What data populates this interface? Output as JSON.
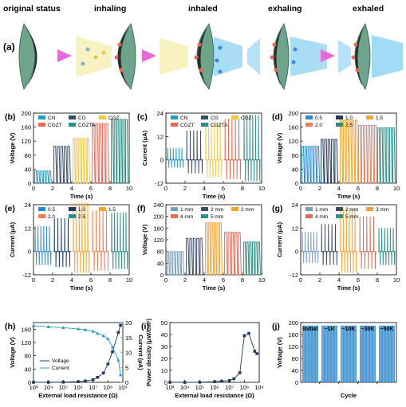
{
  "panel_a": {
    "letter": "(a)",
    "stages": [
      "original status",
      "inhaling",
      "inhaled",
      "exhaling",
      "exhaled"
    ]
  },
  "colors": {
    "green": "#6fa48c",
    "arrow": "#e86ad8",
    "flow": "#6ec6ef",
    "cyan_teal": "#2a9bbf",
    "dark": "#3d4a66",
    "yellow": "#f3c84b",
    "red": "#e46a55",
    "teal": "#2f8f86",
    "blue": "#2f88c9",
    "navy": "#1f3a5f",
    "orange": "#f2a431",
    "salmon": "#ef7d57",
    "grey_blue": "#7a9dc2"
  },
  "chart_data": [
    {
      "id": "b",
      "letter": "(b)",
      "type": "line",
      "mode": "voltage",
      "xlabel": "Time (s)",
      "ylabel": "Voltage (V)",
      "xlim": [
        0,
        10
      ],
      "ylim": [
        0,
        200
      ],
      "xticks": [
        0,
        2,
        4,
        6,
        8,
        10
      ],
      "yticks": [
        0,
        40,
        80,
        120,
        160,
        200
      ],
      "series": [
        {
          "name": "CN",
          "color": "#2a9bbf",
          "start": 0.1,
          "end": 1.9,
          "peak": 35,
          "n": 6
        },
        {
          "name": "CG",
          "color": "#3d4a66",
          "start": 2.1,
          "end": 3.9,
          "peak": 105,
          "n": 5
        },
        {
          "name": "CGZ",
          "color": "#f3c84b",
          "start": 4.1,
          "end": 5.9,
          "peak": 128,
          "n": 6
        },
        {
          "name": "CGZT",
          "color": "#e46a55",
          "start": 6.1,
          "end": 7.9,
          "peak": 170,
          "n": 5
        },
        {
          "name": "CGZTA",
          "color": "#2f8f86",
          "start": 8.1,
          "end": 9.9,
          "peak": 182,
          "n": 6
        }
      ],
      "legend": [
        [
          "CN",
          "CG",
          "CGZ"
        ],
        [
          "CGZT",
          "CGZTA"
        ]
      ]
    },
    {
      "id": "c",
      "letter": "(c)",
      "type": "line",
      "mode": "current",
      "xlabel": "Time (s)",
      "ylabel": "Current (μA)",
      "xlim": [
        0,
        10
      ],
      "ylim": [
        -12,
        24
      ],
      "xticks": [
        0,
        2,
        4,
        6,
        8,
        10
      ],
      "yticks": [
        -12,
        0,
        12,
        24
      ],
      "series": [
        {
          "name": "CN",
          "color": "#2a9bbf",
          "start": 0.1,
          "end": 1.9,
          "peak": 6,
          "neg": -4,
          "n": 6
        },
        {
          "name": "CG",
          "color": "#3d4a66",
          "start": 2.1,
          "end": 3.9,
          "peak": 15,
          "neg": -7,
          "n": 5
        },
        {
          "name": "CGZ",
          "color": "#f3c84b",
          "start": 4.1,
          "end": 5.9,
          "peak": 19,
          "neg": -9,
          "n": 6
        },
        {
          "name": "CGZT",
          "color": "#e46a55",
          "start": 6.1,
          "end": 7.9,
          "peak": 21,
          "neg": -10,
          "n": 5
        },
        {
          "name": "CGZTA",
          "color": "#2f8f86",
          "start": 8.1,
          "end": 9.9,
          "peak": 23,
          "neg": -11,
          "n": 6
        }
      ],
      "legend": [
        [
          "CN",
          "CG",
          "CGZ"
        ],
        [
          "CGZT",
          "CGZTA"
        ]
      ]
    },
    {
      "id": "d",
      "letter": "(d)",
      "type": "line",
      "mode": "voltage",
      "xlabel": "Time (s)",
      "ylabel": "Voltage (V)",
      "xlim": [
        0,
        10
      ],
      "ylim": [
        0,
        200
      ],
      "xticks": [
        0,
        2,
        4,
        6,
        8,
        10
      ],
      "yticks": [
        0,
        40,
        80,
        120,
        160,
        200
      ],
      "series": [
        {
          "name": "0.5",
          "color": "#2f88c9",
          "start": 0.1,
          "end": 2.0,
          "peak": 105,
          "n": 6
        },
        {
          "name": "1.0",
          "color": "#1f3a5f",
          "start": 2.1,
          "end": 3.9,
          "peak": 125,
          "n": 5
        },
        {
          "name": "1.5",
          "color": "#f2a431",
          "start": 4.1,
          "end": 6.0,
          "peak": 180,
          "n": 6
        },
        {
          "name": "2.0",
          "color": "#ef7d57",
          "start": 6.0,
          "end": 8.0,
          "peak": 165,
          "n": 6
        },
        {
          "name": "2.5",
          "color": "#2f8f86",
          "start": 8.0,
          "end": 9.9,
          "peak": 158,
          "n": 6
        }
      ],
      "legend": [
        [
          "0.5",
          "1.0",
          "1.5"
        ],
        [
          "2.0",
          "2.5"
        ]
      ]
    },
    {
      "id": "e",
      "letter": "(e)",
      "type": "line",
      "mode": "current",
      "xlabel": "Time (s)",
      "ylabel": "Current (μA)",
      "xlim": [
        0,
        10
      ],
      "ylim": [
        -12,
        24
      ],
      "xticks": [
        0,
        2,
        4,
        6,
        8,
        10
      ],
      "yticks": [
        -12,
        0,
        12,
        24
      ],
      "series": [
        {
          "name": "0.5",
          "color": "#2f88c9",
          "start": 0.1,
          "end": 1.9,
          "peak": 13,
          "neg": -7,
          "n": 6
        },
        {
          "name": "1.0",
          "color": "#1f3a5f",
          "start": 2.1,
          "end": 3.9,
          "peak": 17,
          "neg": -8,
          "n": 5
        },
        {
          "name": "1.5",
          "color": "#f2a431",
          "start": 4.1,
          "end": 5.9,
          "peak": 25,
          "neg": -11,
          "n": 6
        },
        {
          "name": "2.0",
          "color": "#ef7d57",
          "start": 6.1,
          "end": 7.9,
          "peak": 21,
          "neg": -10,
          "n": 5
        },
        {
          "name": "2.5",
          "color": "#2f8f86",
          "start": 8.1,
          "end": 9.9,
          "peak": 20,
          "neg": -9,
          "n": 6
        }
      ],
      "legend": [
        [
          "0.5",
          "1.0",
          "1.5"
        ],
        [
          "2.0",
          "2.5"
        ]
      ]
    },
    {
      "id": "f",
      "letter": "(f)",
      "type": "line",
      "mode": "voltage",
      "xlabel": "Time (s)",
      "ylabel": "Voltage (V)",
      "xlim": [
        0,
        10
      ],
      "ylim": [
        0,
        240
      ],
      "xticks": [
        0,
        2,
        4,
        6,
        8,
        10
      ],
      "yticks": [
        0,
        40,
        80,
        120,
        160,
        200,
        240
      ],
      "series": [
        {
          "name": "1 mm",
          "color": "#7a9dc2",
          "start": 0.1,
          "end": 1.9,
          "peak": 80,
          "n": 6
        },
        {
          "name": "2 mm",
          "color": "#3d4a66",
          "start": 2.1,
          "end": 3.9,
          "peak": 125,
          "n": 5
        },
        {
          "name": "3 mm",
          "color": "#f2a431",
          "start": 4.1,
          "end": 5.9,
          "peak": 178,
          "n": 6
        },
        {
          "name": "4 mm",
          "color": "#e46a55",
          "start": 6.1,
          "end": 7.9,
          "peak": 145,
          "n": 5
        },
        {
          "name": "5 mm",
          "color": "#2f8f86",
          "start": 8.1,
          "end": 9.9,
          "peak": 112,
          "n": 6
        }
      ],
      "legend": [
        [
          "1 mm",
          "2 mm",
          "3 mm"
        ],
        [
          "4 mm",
          "5 mm"
        ]
      ]
    },
    {
      "id": "g",
      "letter": "(g)",
      "type": "line",
      "mode": "current",
      "xlabel": "Time (s)",
      "ylabel": "Current (μA)",
      "xlim": [
        0,
        10
      ],
      "ylim": [
        -12,
        24
      ],
      "xticks": [
        0,
        2,
        4,
        6,
        8,
        10
      ],
      "yticks": [
        -12,
        0,
        12,
        24
      ],
      "series": [
        {
          "name": "1 mm",
          "color": "#7a9dc2",
          "start": 0.1,
          "end": 1.9,
          "peak": 10,
          "neg": -6,
          "n": 6
        },
        {
          "name": "2 mm",
          "color": "#3d4a66",
          "start": 2.1,
          "end": 3.9,
          "peak": 14,
          "neg": -7,
          "n": 5
        },
        {
          "name": "3 mm",
          "color": "#f2a431",
          "start": 4.1,
          "end": 5.9,
          "peak": 22,
          "neg": -11,
          "n": 6
        },
        {
          "name": "4 mm",
          "color": "#e46a55",
          "start": 6.1,
          "end": 7.9,
          "peak": 18,
          "neg": -9,
          "n": 5
        },
        {
          "name": "5 mm",
          "color": "#2f8f86",
          "start": 8.1,
          "end": 9.9,
          "peak": 12,
          "neg": -7,
          "n": 6
        }
      ],
      "legend": [
        [
          "1 mm",
          "2 mm",
          "3 mm"
        ],
        [
          "4 mm",
          "5 mm"
        ]
      ]
    },
    {
      "id": "h",
      "letter": "(h)",
      "type": "line",
      "mode": "dual",
      "xlabel": "External load resistance (Ω)",
      "ylabel": "Voltage (V)",
      "y2label": "Current (μA)",
      "xlog": true,
      "xlim": [
        1000,
        1000000000
      ],
      "ylim": [
        0,
        180
      ],
      "y2lim": [
        0,
        20
      ],
      "xticks": [
        1000,
        10000,
        100000,
        1000000,
        10000000,
        100000000,
        1000000000
      ],
      "xticklabels": [
        "10³",
        "10⁴",
        "10⁵",
        "10⁶",
        "10⁷",
        "10⁸",
        "10⁹"
      ],
      "yticks": [
        0,
        40,
        80,
        120,
        160
      ],
      "y2ticks": [
        0,
        5,
        10,
        15,
        20
      ],
      "series": [
        {
          "name": "Voltage",
          "axis": "y",
          "color": "#1f3a5f",
          "marker": "square",
          "x": [
            1000,
            10000,
            100000,
            1000000,
            3000000,
            10000000,
            20000000,
            50000000,
            100000000,
            200000000,
            500000000,
            700000000
          ],
          "y": [
            0,
            0,
            0.5,
            2,
            4,
            8,
            15,
            28,
            55,
            92,
            150,
            172
          ]
        },
        {
          "name": "Current",
          "axis": "y2",
          "color": "#2a9bbf",
          "marker": "triangle",
          "x": [
            1000,
            10000,
            100000,
            1000000,
            3000000,
            10000000,
            20000000,
            50000000,
            100000000,
            200000000,
            500000000,
            700000000
          ],
          "y": [
            19,
            18.6,
            18.3,
            17.9,
            17.6,
            17.1,
            16.4,
            15.6,
            14.6,
            11.8,
            7.5,
            2.5
          ]
        }
      ],
      "legend": [
        "Voltage",
        "Current"
      ]
    },
    {
      "id": "i",
      "letter": "(i)",
      "type": "line",
      "mode": "single",
      "xlabel": "External load resistance (Ω)",
      "ylabel": "Power density (μW/cm²)",
      "xlog": true,
      "xlim": [
        1000,
        1000000000
      ],
      "ylim": [
        0,
        50
      ],
      "xticks": [
        1000,
        10000,
        100000,
        1000000,
        10000000,
        100000000,
        1000000000
      ],
      "xticklabels": [
        "10³",
        "10⁴",
        "10⁵",
        "10⁶",
        "10⁷",
        "10⁸",
        "10⁹"
      ],
      "yticks": [
        0,
        10,
        20,
        30,
        40,
        50
      ],
      "series": [
        {
          "name": "",
          "axis": "y",
          "color": "#1f3a5f",
          "marker": "square",
          "x": [
            1000,
            10000,
            100000,
            1000000,
            3000000,
            10000000,
            20000000,
            50000000,
            100000000,
            200000000,
            500000000,
            700000000
          ],
          "y": [
            0,
            0,
            0.1,
            0.5,
            1,
            1.5,
            3,
            8,
            39,
            41,
            26,
            24
          ]
        }
      ]
    },
    {
      "id": "j",
      "letter": "(j)",
      "type": "line",
      "mode": "cycle",
      "xlabel": "Cycle",
      "ylabel": "Voltage (V)",
      "ylim": [
        0,
        200
      ],
      "yticks": [
        0,
        40,
        80,
        120,
        160,
        200
      ],
      "segments": [
        "Initial",
        "~1K",
        "~10K",
        "~30K",
        "~50K"
      ],
      "peak": 190,
      "color": "#2f88c9"
    }
  ]
}
